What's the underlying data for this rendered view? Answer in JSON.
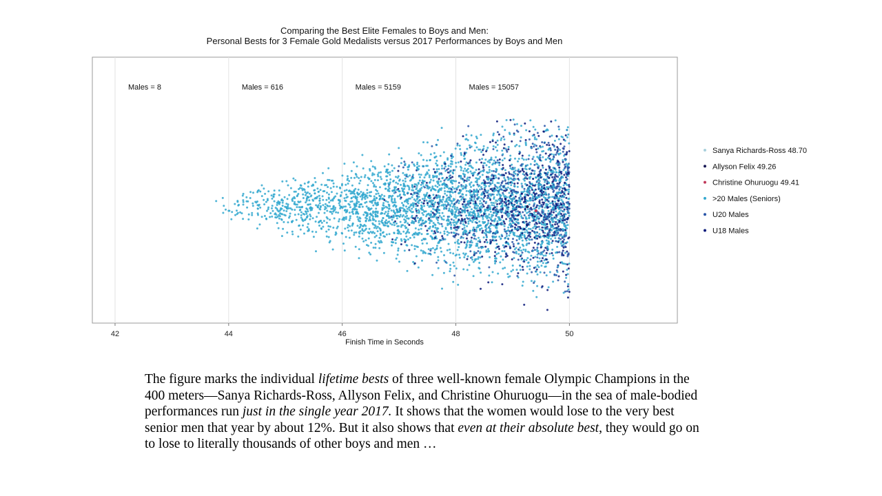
{
  "chart_data": {
    "type": "scatter",
    "title": "Comparing the Best Elite Females to Boys and Men:",
    "subtitle": "Personal Bests for 3 Female Gold Medalists versus 2017 Performances by Boys and Men",
    "xlabel": "Finish Time in Seconds",
    "ylabel": "",
    "xlim": [
      41.6,
      51.9
    ],
    "x_ticks": [
      42,
      44,
      46,
      48,
      50
    ],
    "grid": "vertical lines at x ticks",
    "annotations": [
      {
        "text": "Males = 8",
        "x": 42
      },
      {
        "text": "Males = 616",
        "x": 44
      },
      {
        "text": "Males = 5159",
        "x": 46
      },
      {
        "text": "Males = 15057",
        "x": 48
      }
    ],
    "legend_position": "right",
    "series": [
      {
        "name": "Sanya Richards-Ross 48.70",
        "color": "#a8d0dc",
        "x": [
          48.7
        ]
      },
      {
        "name": "Allyson Felix 49.26",
        "color": "#1a1a55",
        "x": [
          49.26
        ]
      },
      {
        "name": "Christine Ohuruogu 49.41",
        "color": "#c0395a",
        "x": [
          49.41
        ]
      },
      {
        "name": ">20 Males (Seniors)",
        "color": "#33a8cf"
      },
      {
        "name": "U20 Males",
        "color": "#2a55a8"
      },
      {
        "name": "U18 Males",
        "color": "#0a1a7a"
      }
    ],
    "points_note": "cloud of male performances from about 43.6 s to 50 s, density increasing with time"
  },
  "caption": {
    "part1": "The figure marks the individual ",
    "em1": "lifetime bests",
    "part2": " of three well-known female Olympic Champions in the 400 meters—Sanya Richards-Ross, Allyson Felix, and Christine Ohuruogu—in the sea of male-bodied performances run ",
    "em2": "just in the single year 2017.",
    "part3": " It shows that the women would lose to the very best senior men that year by about 12%. But it also shows that ",
    "em3": "even at their absolute best",
    "part4": ", they would go on to lose to literally thousands of other boys and men …"
  }
}
